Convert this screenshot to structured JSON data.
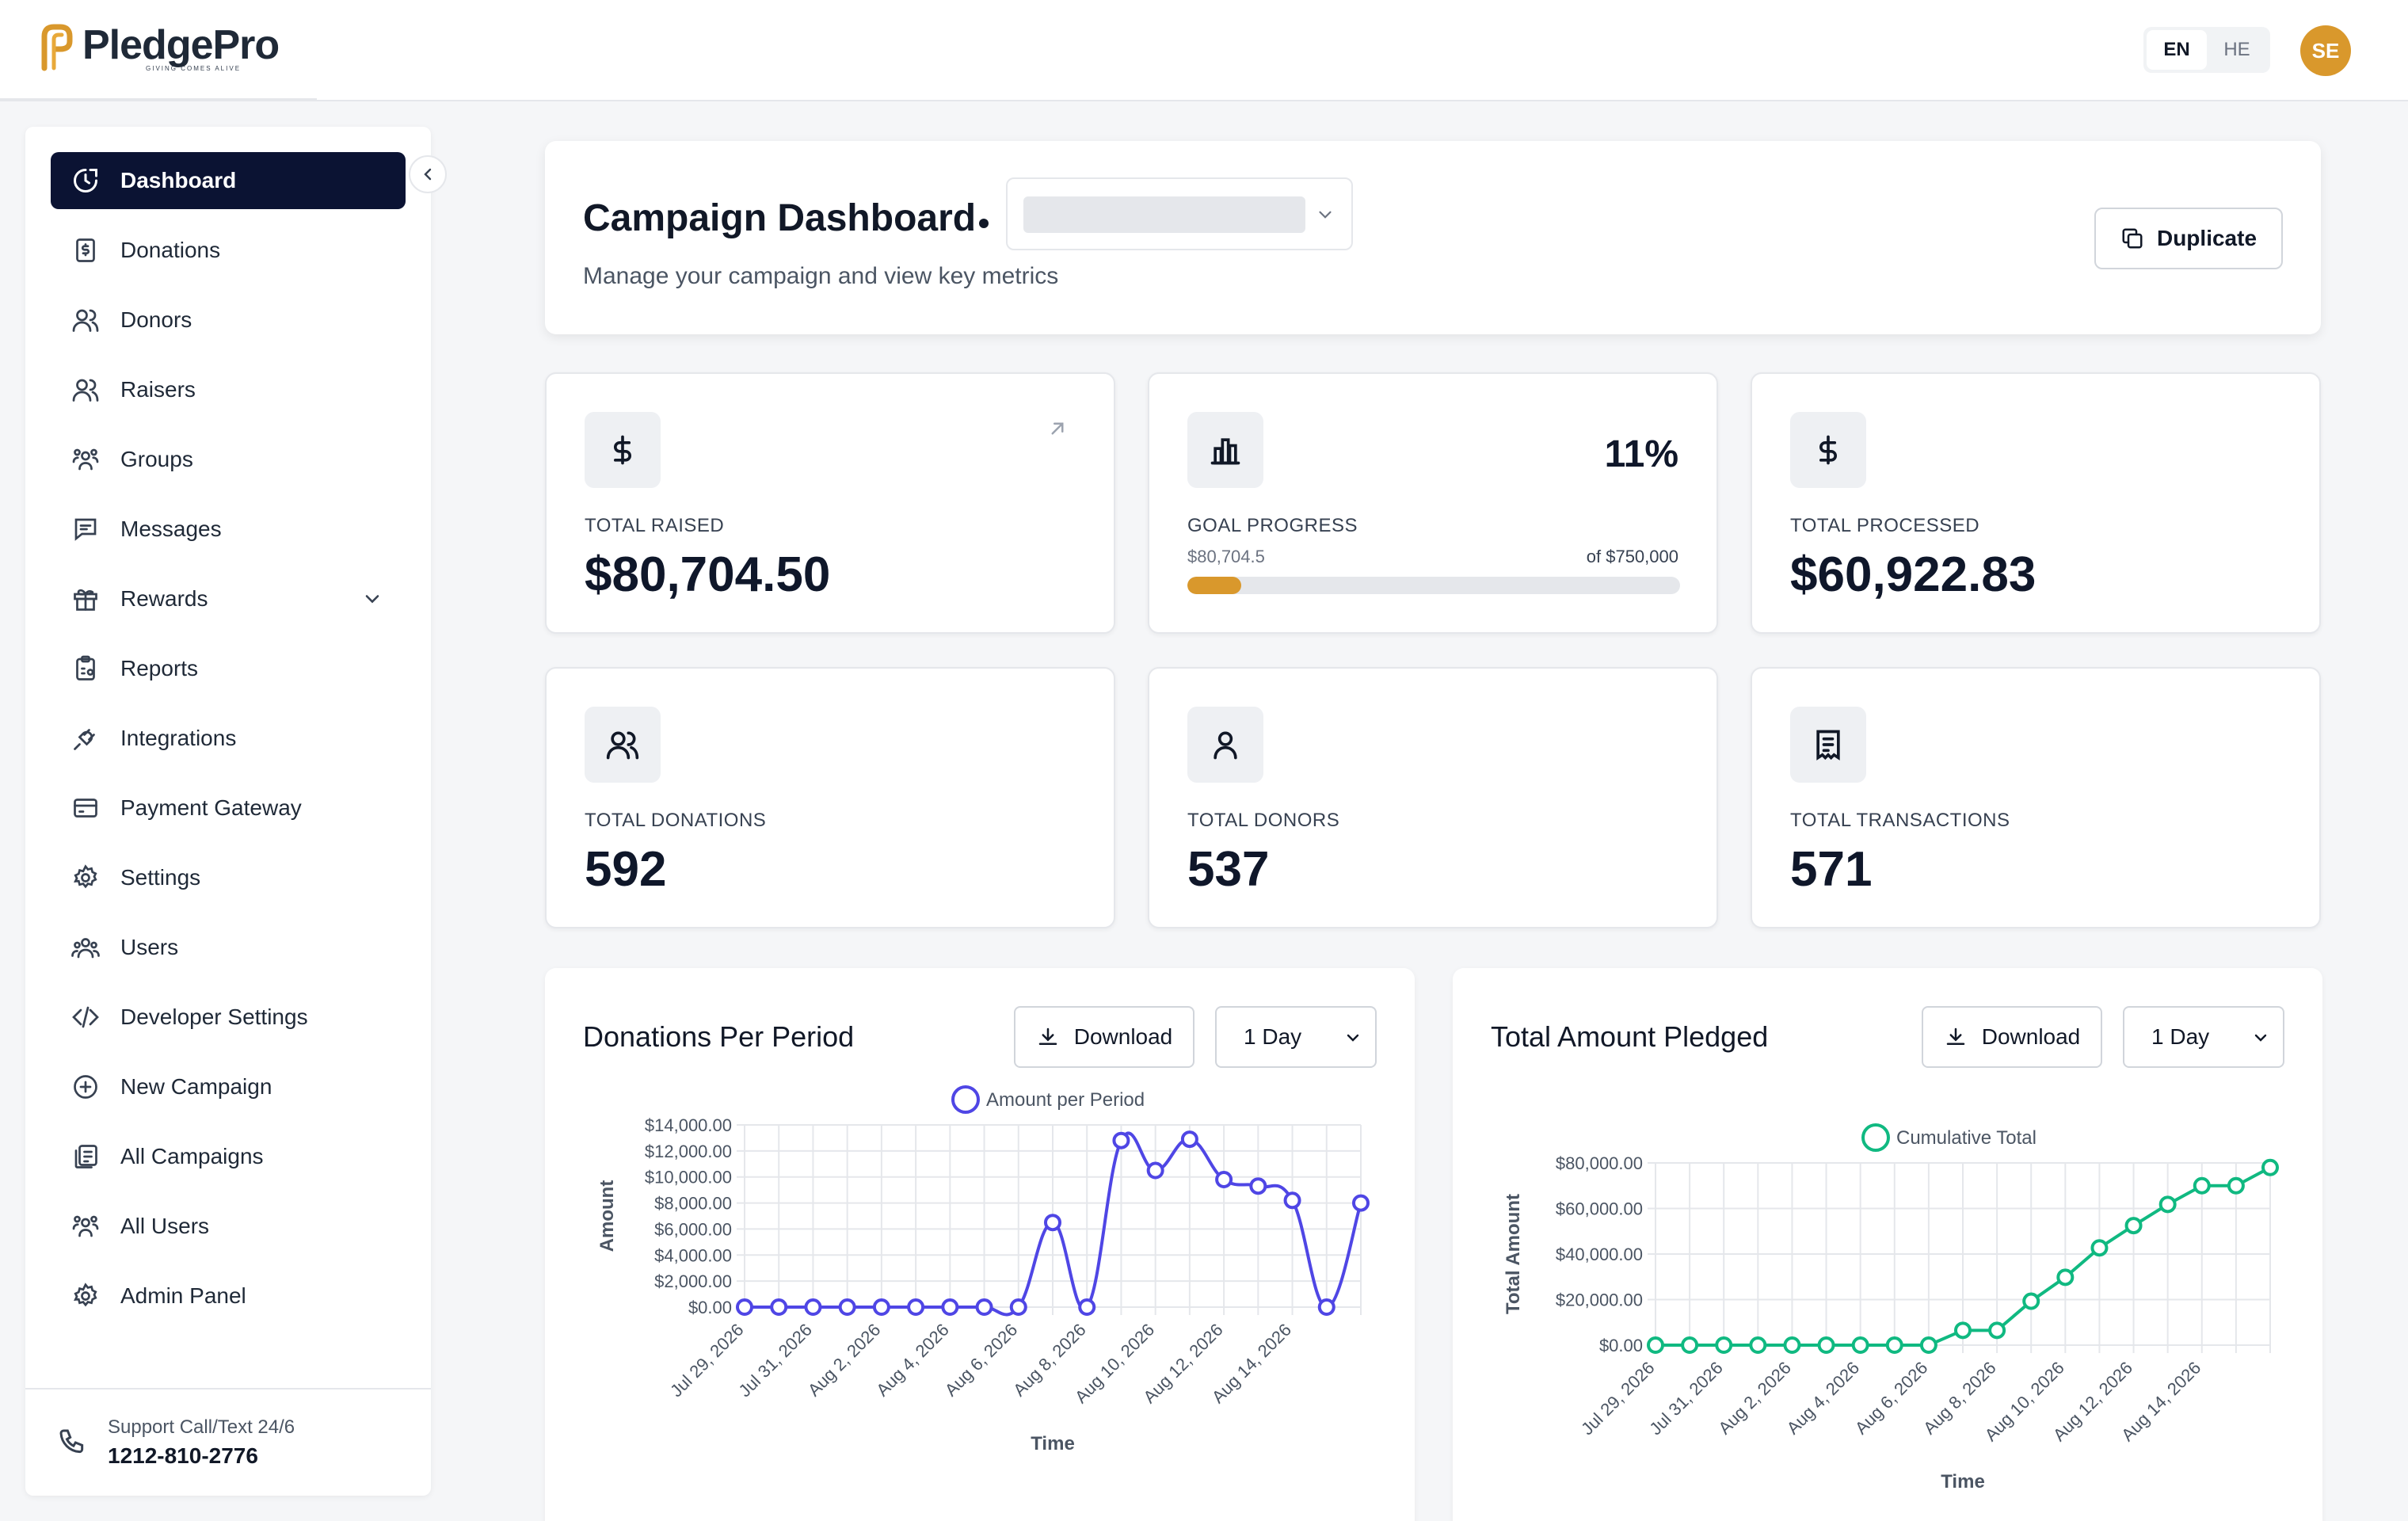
{
  "brand": {
    "name": "PledgePro",
    "tagline": "GIVING COMES ALIVE",
    "accent": "#d9982c",
    "nav_dark": "#0b1333"
  },
  "language": {
    "options": [
      "EN",
      "HE"
    ],
    "selected": "EN"
  },
  "user": {
    "initials": "SE"
  },
  "sidebar": {
    "items": [
      {
        "label": "Dashboard",
        "icon": "dashboard-icon",
        "active": true
      },
      {
        "label": "Donations",
        "icon": "receipt-dollar-icon"
      },
      {
        "label": "Donors",
        "icon": "users-icon"
      },
      {
        "label": "Raisers",
        "icon": "users-icon"
      },
      {
        "label": "Groups",
        "icon": "group-icon"
      },
      {
        "label": "Messages",
        "icon": "message-icon"
      },
      {
        "label": "Rewards",
        "icon": "gift-icon",
        "expandable": true
      },
      {
        "label": "Reports",
        "icon": "clipboard-icon"
      },
      {
        "label": "Integrations",
        "icon": "plug-icon"
      },
      {
        "label": "Payment Gateway",
        "icon": "credit-card-icon"
      },
      {
        "label": "Settings",
        "icon": "gear-icon"
      },
      {
        "label": "Users",
        "icon": "users-group-icon"
      },
      {
        "label": "Developer Settings",
        "icon": "code-icon"
      },
      {
        "label": "New Campaign",
        "icon": "plus-circle-icon"
      },
      {
        "label": "All Campaigns",
        "icon": "list-icon"
      },
      {
        "label": "All Users",
        "icon": "group-icon"
      },
      {
        "label": "Admin Panel",
        "icon": "gear-icon"
      }
    ],
    "support": {
      "label": "Support Call/Text 24/6",
      "phone": "1212-810-2776"
    }
  },
  "header": {
    "title": "Campaign Dashboard",
    "subtitle": "Manage your campaign and view key metrics",
    "duplicate_label": "Duplicate"
  },
  "stats": {
    "total_raised": {
      "label": "TOTAL RAISED",
      "value": "$80,704.50"
    },
    "goal_progress": {
      "label": "GOAL PROGRESS",
      "percent": "11%",
      "current": "$80,704.5",
      "goal": "of $750,000",
      "fraction": 0.11
    },
    "total_processed": {
      "label": "TOTAL PROCESSED",
      "value": "$60,922.83"
    },
    "total_donations": {
      "label": "TOTAL DONATIONS",
      "value": "592"
    },
    "total_donors": {
      "label": "TOTAL DONORS",
      "value": "537"
    },
    "total_transactions": {
      "label": "TOTAL TRANSACTIONS",
      "value": "571"
    }
  },
  "charts": {
    "download_label": "Download",
    "period_label": "1 Day"
  },
  "chart_data": [
    {
      "type": "line",
      "title": "Donations Per Period",
      "xlabel": "Time",
      "ylabel": "Amount",
      "color": "#4f46e5",
      "ylim": [
        0,
        14000
      ],
      "yticks": [
        "$0.00",
        "$2,000.00",
        "$4,000.00",
        "$6,000.00",
        "$8,000.00",
        "$10,000.00",
        "$12,000.00",
        "$14,000.00"
      ],
      "x_tick_labels": [
        "Jul 29, 2026",
        "Jul 31, 2026",
        "Aug 2, 2026",
        "Aug 4, 2026",
        "Aug 6, 2026",
        "Aug 8, 2026",
        "Aug 10, 2026",
        "Aug 12, 2026",
        "Aug 14, 2026"
      ],
      "series": [
        {
          "name": "Amount per Period",
          "values": [
            0,
            0,
            0,
            0,
            0,
            0,
            0,
            0,
            0,
            6500,
            0,
            12800,
            10500,
            12900,
            9800,
            9300,
            8200,
            0,
            8000
          ]
        }
      ],
      "grid": true,
      "legend": "top-center"
    },
    {
      "type": "line",
      "title": "Total Amount Pledged",
      "xlabel": "Time",
      "ylabel": "Total Amount",
      "color": "#10b981",
      "ylim": [
        0,
        80000
      ],
      "yticks": [
        "$0.00",
        "$20,000.00",
        "$40,000.00",
        "$60,000.00",
        "$80,000.00"
      ],
      "x_tick_labels": [
        "Jul 29, 2026",
        "Jul 31, 2026",
        "Aug 2, 2026",
        "Aug 4, 2026",
        "Aug 6, 2026",
        "Aug 8, 2026",
        "Aug 10, 2026",
        "Aug 12, 2026",
        "Aug 14, 2026"
      ],
      "series": [
        {
          "name": "Cumulative Total",
          "values": [
            0,
            0,
            0,
            0,
            0,
            0,
            0,
            0,
            0,
            6500,
            6500,
            19300,
            29800,
            42700,
            52500,
            61800,
            70000,
            70000,
            78000
          ]
        }
      ],
      "grid": true,
      "legend": "top-center"
    }
  ]
}
